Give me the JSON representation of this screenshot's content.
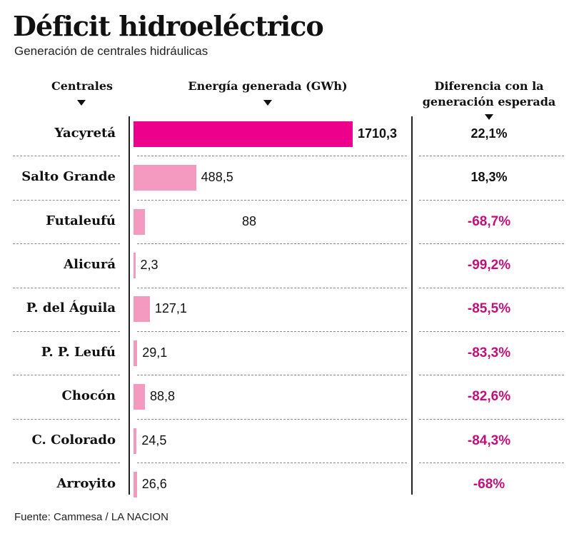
{
  "header": {
    "title": "Déficit hidroeléctrico",
    "subtitle": "Generación de centrales hidráulicas"
  },
  "columns": {
    "names": "Centrales",
    "energy": "Energía generada (GWh)",
    "diff_line1": "Diferencia con la",
    "diff_line2": "generación esperada"
  },
  "colors": {
    "highlight_bar": "#ec008c",
    "bar": "#f49ac1",
    "negative_text": "#c0117a"
  },
  "chart_data": {
    "type": "bar",
    "orientation": "horizontal",
    "title": "Déficit hidroeléctrico",
    "subtitle": "Generación de centrales hidráulicas",
    "xlabel": "Energía generada (GWh)",
    "categories": [
      "Yacyretá",
      "Salto Grande",
      "Futaleufú",
      "Alicurá",
      "P. del Águila",
      "P. P. Leufú",
      "Chocón",
      "C. Colorado",
      "Arroyito"
    ],
    "values": [
      1710.3,
      488.5,
      88,
      2.3,
      127.1,
      29.1,
      88.8,
      24.5,
      26.6
    ],
    "value_labels": [
      "1710,3",
      "488,5",
      "88",
      "2,3",
      "127,1",
      "29,1",
      "88,8",
      "24,5",
      "26,6"
    ],
    "differences": [
      22.1,
      18.3,
      -68.7,
      -99.2,
      -85.5,
      -83.3,
      -82.6,
      -84.3,
      -68
    ],
    "difference_labels": [
      "22,1%",
      "18,3%",
      "-68,7%",
      "-99,2%",
      "-85,5%",
      "-83,3%",
      "-82,6%",
      "-84,3%",
      "-68%"
    ],
    "highlight_index": 0
  },
  "footer": {
    "source": "Fuente: Cammesa / LA NACION"
  }
}
